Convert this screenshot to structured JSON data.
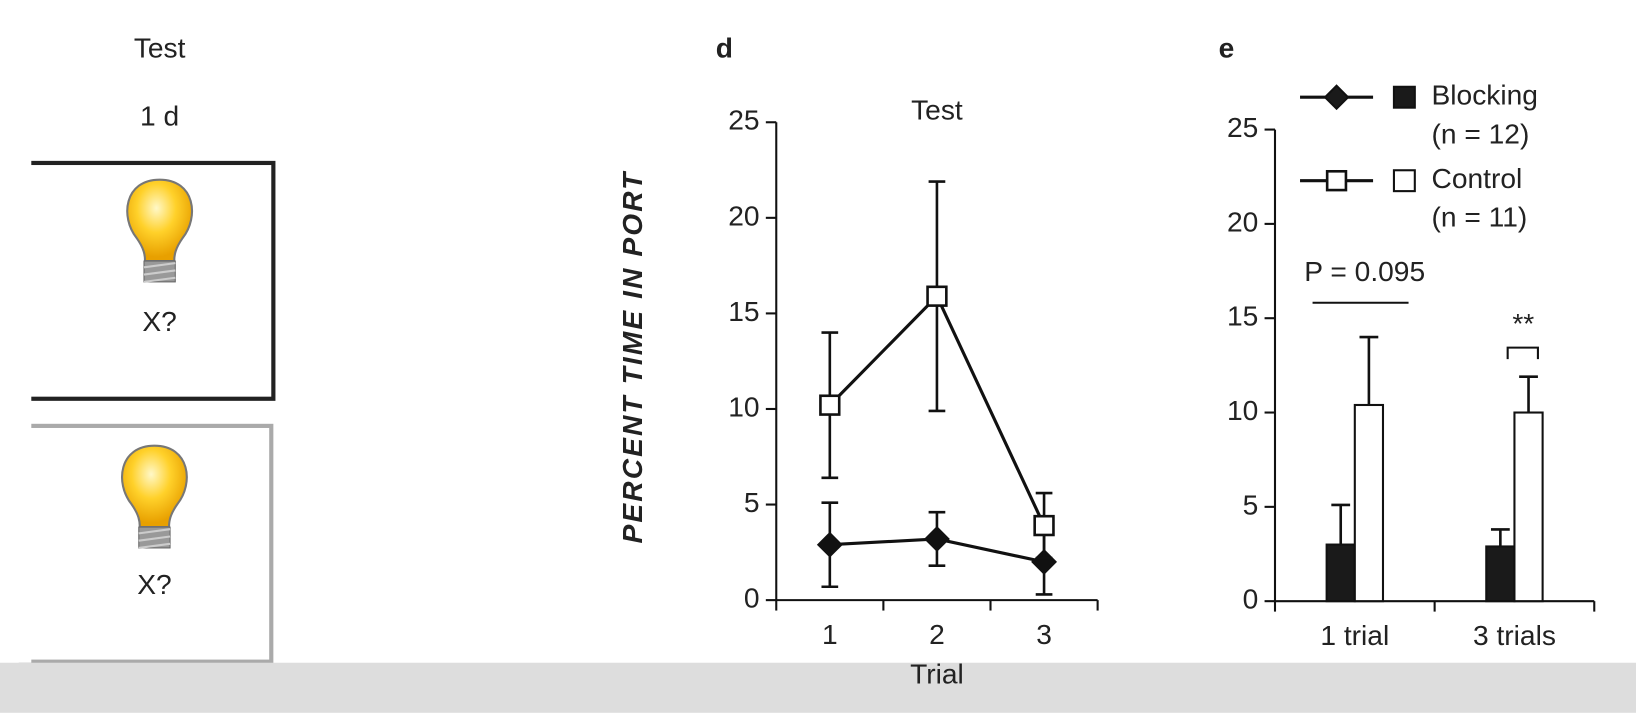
{
  "diagram": {
    "header": [
      "Test",
      "1 d"
    ],
    "boxes": [
      {
        "label": "X?"
      },
      {
        "label": "X?"
      }
    ]
  },
  "chart_data": [
    {
      "type": "line",
      "panel": "d",
      "title": "Test",
      "xlabel": "Trial",
      "ylabel": "PERCENT TIME IN PORT",
      "categories": [
        "1",
        "2",
        "3"
      ],
      "ylim": [
        0,
        25
      ],
      "yticks": [
        0,
        5,
        10,
        15,
        20,
        25
      ],
      "series": [
        {
          "name": "Blocking",
          "color": "#111111",
          "marker": "diamond",
          "values": [
            2.9,
            3.2,
            2.0
          ],
          "errors": [
            2.2,
            1.4,
            1.7
          ]
        },
        {
          "name": "Control",
          "color": "#ffffff",
          "marker": "square",
          "values": [
            10.2,
            15.9,
            3.9
          ],
          "errors": [
            3.8,
            6.0,
            1.7
          ]
        }
      ]
    },
    {
      "type": "bar",
      "panel": "e",
      "categories": [
        "1 trial",
        "3 trials"
      ],
      "ylim": [
        0,
        25
      ],
      "yticks": [
        0,
        5,
        10,
        15,
        20,
        25
      ],
      "series": [
        {
          "name": "Blocking",
          "note": "(n = 12)",
          "color": "#1a1a1a",
          "values": [
            3.0,
            2.9
          ],
          "errors": [
            2.1,
            0.9
          ]
        },
        {
          "name": "Control",
          "note": "(n = 11)",
          "color": "#ffffff",
          "values": [
            10.4,
            10.0
          ],
          "errors": [
            3.6,
            1.9
          ]
        }
      ],
      "annotations": [
        "P = 0.095",
        "**"
      ]
    }
  ]
}
